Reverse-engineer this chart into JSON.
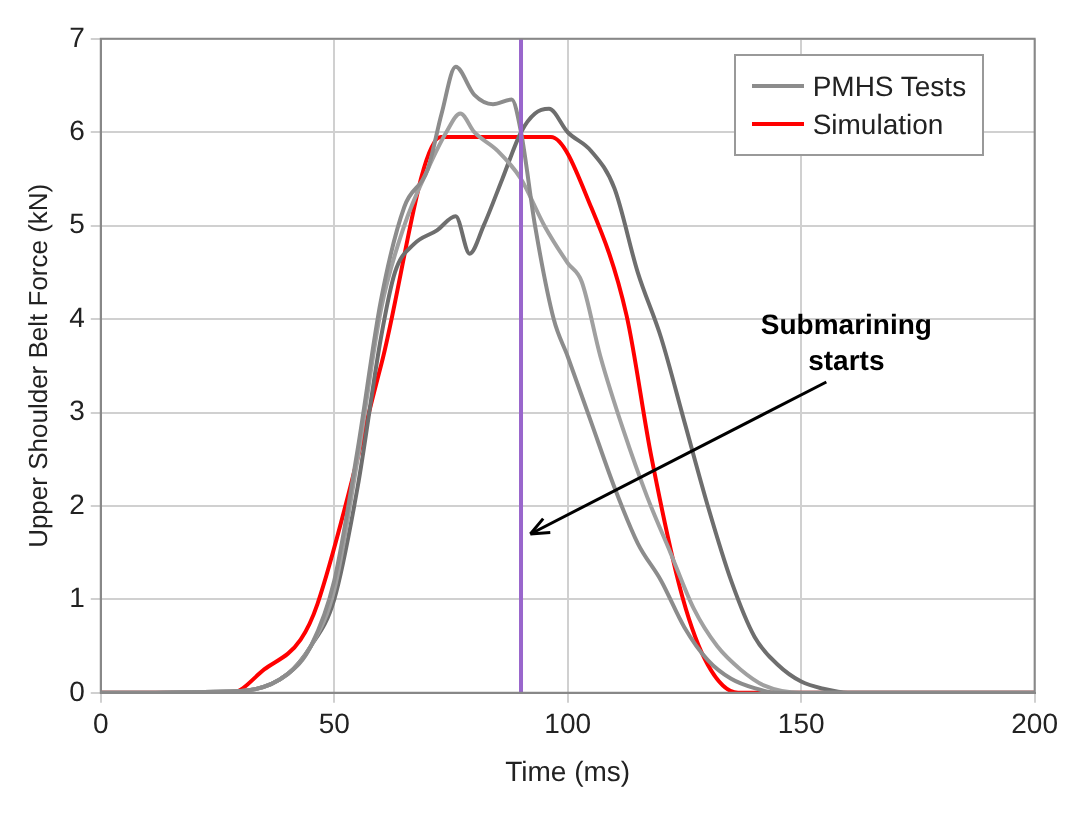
{
  "chart_data": {
    "type": "line",
    "xlabel": "Time (ms)",
    "ylabel": "Upper Shoulder Belt Force (kN)",
    "xlim": [
      0,
      200
    ],
    "xticks": [
      0,
      50,
      100,
      150,
      200
    ],
    "ylim": [
      0,
      7
    ],
    "yticks": [
      0,
      1,
      2,
      3,
      4,
      5,
      6,
      7
    ],
    "grid": true,
    "legend": "top right",
    "marker": "none",
    "line_style": "solid",
    "series": [
      {
        "name": "PMHS Tests",
        "color": "#8c8c8c",
        "x": [
          0,
          30,
          40,
          45,
          50,
          55,
          60,
          65,
          70,
          73,
          76,
          80,
          84,
          88,
          90,
          93,
          97,
          100,
          105,
          110,
          115,
          120,
          125,
          130,
          135,
          140,
          145,
          200
        ],
        "values": [
          0,
          0.02,
          0.2,
          0.5,
          1.2,
          2.6,
          4.2,
          5.2,
          5.6,
          6.2,
          6.7,
          6.4,
          6.3,
          6.35,
          6.0,
          5.0,
          4.0,
          3.6,
          2.9,
          2.2,
          1.6,
          1.2,
          0.7,
          0.35,
          0.15,
          0.05,
          0,
          0
        ]
      },
      {
        "color": "#a0a0a0",
        "x": [
          0,
          30,
          40,
          45,
          50,
          55,
          60,
          65,
          70,
          74,
          77,
          80,
          85,
          90,
          95,
          100,
          103,
          107,
          112,
          117,
          122,
          127,
          132,
          137,
          142,
          150,
          200
        ],
        "values": [
          0,
          0.02,
          0.2,
          0.5,
          1.1,
          2.5,
          4.1,
          5.0,
          5.6,
          6.0,
          6.2,
          6.0,
          5.8,
          5.5,
          5.0,
          4.6,
          4.4,
          3.6,
          2.8,
          2.1,
          1.5,
          0.9,
          0.5,
          0.25,
          0.08,
          0,
          0
        ]
      },
      {
        "color": "#6e6e6e",
        "x": [
          0,
          30,
          40,
          45,
          50,
          55,
          60,
          63,
          67,
          72,
          76,
          79,
          82,
          86,
          90,
          93,
          96,
          100,
          105,
          110,
          115,
          120,
          125,
          130,
          135,
          140,
          145,
          150,
          155,
          160,
          200
        ],
        "values": [
          0,
          0.02,
          0.2,
          0.5,
          1.0,
          2.2,
          3.8,
          4.5,
          4.8,
          4.95,
          5.1,
          4.7,
          5.0,
          5.5,
          6.0,
          6.2,
          6.25,
          6.0,
          5.8,
          5.4,
          4.5,
          3.8,
          2.9,
          2.0,
          1.2,
          0.6,
          0.3,
          0.12,
          0.04,
          0,
          0
        ]
      },
      {
        "name": "Simulation",
        "color": "#ff0000",
        "x": [
          0,
          28,
          35,
          42.8,
          46.4,
          60,
          72.8,
          96.4,
          105,
          112.6,
          117.9,
          124.6,
          130,
          136.5,
          200
        ],
        "values": [
          0,
          0,
          0.25,
          0.57,
          0.95,
          3.5,
          5.95,
          5.95,
          5.2,
          4.04,
          2.53,
          1.02,
          0.3,
          0,
          0
        ]
      }
    ],
    "ref_lines": [
      {
        "axis": "x",
        "value": 90,
        "color": "#9966cc"
      }
    ],
    "annotations": [
      {
        "text": "Submarining starts",
        "x": 92,
        "y": 1.7
      }
    ]
  }
}
